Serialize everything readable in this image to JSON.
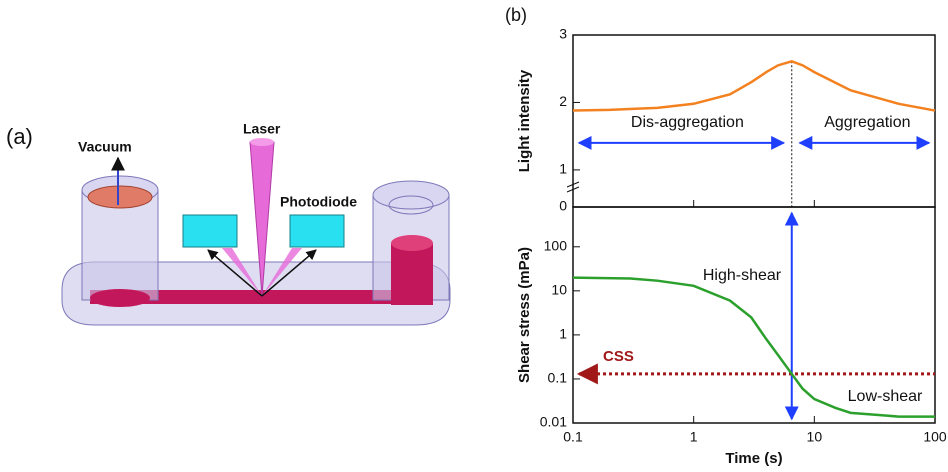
{
  "panel_labels": [
    "(a)",
    "(b)"
  ],
  "diagram": {
    "labels": [
      "Vacuum",
      "Laser",
      "Photodiode"
    ]
  },
  "chart_data": [
    {
      "type": "line",
      "ylabel": "Light intensity",
      "x": [
        0.1,
        0.2,
        0.5,
        1,
        2,
        3,
        4,
        5,
        6.5,
        8,
        10,
        20,
        50,
        100
      ],
      "values": [
        1.88,
        1.89,
        1.92,
        1.98,
        2.12,
        2.3,
        2.45,
        2.55,
        2.61,
        2.55,
        2.45,
        2.18,
        1.98,
        1.88
      ],
      "color": "#f4811f",
      "xlim": [
        0.1,
        100
      ],
      "xscale": "log",
      "ylim": [
        0.45,
        3
      ],
      "yticks": [
        1,
        2,
        3
      ],
      "ybreak_label": "0",
      "marker_x": 6.5,
      "annotations": [
        "Dis-aggregation",
        "Aggregation"
      ]
    },
    {
      "type": "line",
      "xlabel": "Time (s)",
      "ylabel": "Shear stress (mPa)",
      "x": [
        0.1,
        0.3,
        0.5,
        1,
        2,
        3,
        4,
        5,
        6.5,
        8,
        10,
        15,
        20,
        50,
        100
      ],
      "values": [
        20,
        19,
        17,
        13,
        6,
        2.5,
        0.8,
        0.35,
        0.13,
        0.06,
        0.035,
        0.022,
        0.017,
        0.014,
        0.014
      ],
      "color": "#2ca02c",
      "xlim": [
        0.1,
        100
      ],
      "xticks": [
        0.1,
        1,
        10,
        100
      ],
      "xscale": "log",
      "ylim": [
        0.01,
        800
      ],
      "yticks": [
        0.01,
        0.1,
        1,
        10,
        100
      ],
      "yscale": "log",
      "css_level": 0.13,
      "css_label": "CSS",
      "annotations": [
        "High-shear",
        "Low-shear"
      ]
    }
  ]
}
